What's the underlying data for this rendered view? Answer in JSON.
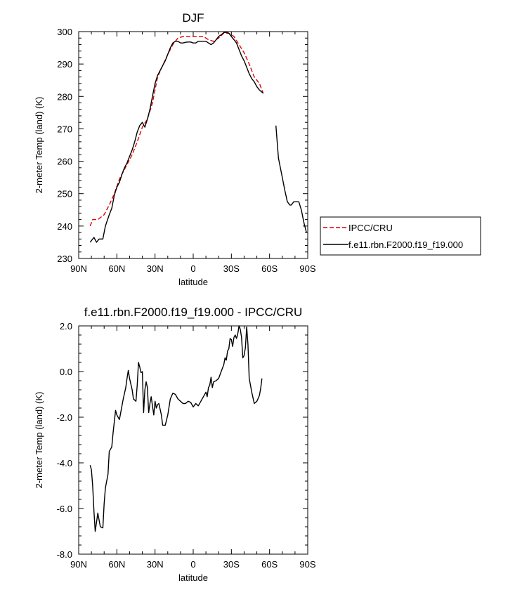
{
  "chart_data": [
    {
      "type": "line",
      "title": "DJF",
      "xlabel": "latitude",
      "ylabel": "2-meter Temp (land) (K)",
      "xlim": [
        90,
        -90
      ],
      "ylim": [
        230,
        300
      ],
      "x_ticks": [
        90,
        60,
        30,
        0,
        -30,
        -60,
        -90
      ],
      "x_tick_labels": [
        "90N",
        "60N",
        "30N",
        "0",
        "30S",
        "60S",
        "90S"
      ],
      "y_ticks": [
        230,
        240,
        250,
        260,
        270,
        280,
        290,
        300
      ],
      "y_tick_labels": [
        "230",
        "240",
        "250",
        "260",
        "270",
        "280",
        "290",
        "300"
      ],
      "legend": {
        "position": "right",
        "entries": [
          {
            "label": "IPCC/CRU",
            "color": "#e00000",
            "dash": "dashed"
          },
          {
            "label": "f.e11.rbn.F2000.f19_f19.000",
            "color": "#000000",
            "dash": "solid"
          }
        ]
      },
      "series": [
        {
          "name": "IPCC/CRU",
          "color": "#e00000",
          "dash": "dashed",
          "segments": [
            [
              [
                81,
                240
              ],
              [
                79,
                242
              ],
              [
                75,
                242
              ],
              [
                70,
                243.5
              ],
              [
                66,
                246.5
              ],
              [
                62,
                250
              ],
              [
                58,
                254.5
              ],
              [
                52,
                259
              ],
              [
                48,
                262
              ],
              [
                44,
                266
              ],
              [
                40,
                270.5
              ],
              [
                36,
                273
              ],
              [
                32,
                278
              ],
              [
                28,
                286
              ],
              [
                24,
                289.5
              ],
              [
                20,
                293
              ],
              [
                16,
                296
              ],
              [
                12,
                298
              ],
              [
                8,
                298.5
              ],
              [
                4,
                298.5
              ],
              [
                0,
                298.5
              ],
              [
                -4,
                298.5
              ],
              [
                -8,
                298.5
              ],
              [
                -12,
                297.5
              ],
              [
                -16,
                297
              ],
              [
                -20,
                298
              ],
              [
                -24,
                299.5
              ],
              [
                -28,
                299.5
              ],
              [
                -32,
                298.5
              ],
              [
                -36,
                296
              ],
              [
                -40,
                293.5
              ],
              [
                -44,
                290
              ],
              [
                -48,
                286
              ],
              [
                -52,
                284
              ],
              [
                -55,
                281
              ]
            ]
          ]
        },
        {
          "name": "f.e11.rbn.F2000.f19_f19.000",
          "color": "#000000",
          "dash": "solid",
          "segments": [
            [
              [
                81,
                235
              ],
              [
                78,
                236.5
              ],
              [
                76,
                235
              ],
              [
                74,
                236
              ],
              [
                71,
                236
              ],
              [
                69,
                240
              ],
              [
                66,
                243.5
              ],
              [
                64,
                245.5
              ],
              [
                62,
                249.5
              ],
              [
                60,
                252
              ],
              [
                58,
                253.5
              ],
              [
                56,
                256
              ],
              [
                54,
                258
              ],
              [
                52,
                259.5
              ],
              [
                50,
                261.5
              ],
              [
                48,
                263.5
              ],
              [
                46,
                266
              ],
              [
                44,
                269
              ],
              [
                42,
                271
              ],
              [
                40,
                272
              ],
              [
                38,
                270.5
              ],
              [
                36,
                273
              ],
              [
                34,
                276
              ],
              [
                32,
                280
              ],
              [
                30,
                284
              ],
              [
                28,
                286.5
              ],
              [
                26,
                288
              ],
              [
                24,
                289.5
              ],
              [
                22,
                291
              ],
              [
                20,
                293
              ],
              [
                18,
                295
              ],
              [
                16,
                296.5
              ],
              [
                14,
                297
              ],
              [
                12,
                297
              ],
              [
                10,
                296.5
              ],
              [
                8,
                296.5
              ],
              [
                6,
                296.7
              ],
              [
                4,
                296.8
              ],
              [
                2,
                296.8
              ],
              [
                0,
                296.5
              ],
              [
                -2,
                296.5
              ],
              [
                -4,
                297
              ],
              [
                -6,
                297
              ],
              [
                -8,
                297
              ],
              [
                -10,
                297
              ],
              [
                -12,
                296.5
              ],
              [
                -14,
                296
              ],
              [
                -16,
                296.5
              ],
              [
                -18,
                297.5
              ],
              [
                -20,
                298.5
              ],
              [
                -22,
                299
              ],
              [
                -24,
                299.7
              ],
              [
                -26,
                299.8
              ],
              [
                -28,
                299.5
              ],
              [
                -30,
                298.5
              ],
              [
                -32,
                297.5
              ],
              [
                -34,
                296.5
              ],
              [
                -36,
                294.5
              ],
              [
                -38,
                292.5
              ],
              [
                -40,
                291
              ],
              [
                -42,
                289
              ],
              [
                -44,
                287
              ],
              [
                -46,
                285.5
              ],
              [
                -48,
                284.5
              ],
              [
                -50,
                283
              ],
              [
                -52,
                282
              ],
              [
                -55,
                281
              ]
            ],
            [
              [
                -65,
                271
              ],
              [
                -67,
                261
              ],
              [
                -70,
                255
              ],
              [
                -72,
                251
              ],
              [
                -74,
                247.5
              ],
              [
                -76,
                246.5
              ],
              [
                -77,
                246.5
              ],
              [
                -79,
                247.5
              ],
              [
                -81,
                247.5
              ],
              [
                -83,
                247.5
              ],
              [
                -85,
                245
              ],
              [
                -87,
                241
              ],
              [
                -89,
                238
              ]
            ]
          ]
        }
      ]
    },
    {
      "type": "line",
      "title": "f.e11.rbn.F2000.f19_f19.000 - IPCC/CRU",
      "xlabel": "latitude",
      "ylabel": "2-meter Temp (land) (K)",
      "xlim": [
        90,
        -90
      ],
      "ylim": [
        -8,
        2
      ],
      "x_ticks": [
        90,
        60,
        30,
        0,
        -30,
        -60,
        -90
      ],
      "x_tick_labels": [
        "90N",
        "60N",
        "30N",
        "0",
        "30S",
        "60S",
        "90S"
      ],
      "y_ticks": [
        -8,
        -6,
        -4,
        -2,
        0,
        2
      ],
      "y_tick_labels": [
        "-8.0",
        "-6.0",
        "-4.0",
        "-2.0",
        "0.0",
        "2.0"
      ],
      "series": [
        {
          "color": "#000000",
          "dash": "solid",
          "segments": [
            [
              [
                81,
                -4.1
              ],
              [
                80,
                -4.3
              ],
              [
                79,
                -5
              ],
              [
                78,
                -6.1
              ],
              [
                77,
                -7
              ],
              [
                76,
                -6.6
              ],
              [
                75,
                -6.2
              ],
              [
                74,
                -6.5
              ],
              [
                73,
                -6.8
              ],
              [
                71,
                -6.85
              ],
              [
                70,
                -5.8
              ],
              [
                69,
                -5.1
              ],
              [
                67,
                -4.5
              ],
              [
                66,
                -3.5
              ],
              [
                64,
                -3.3
              ],
              [
                63,
                -2.7
              ],
              [
                62,
                -2.2
              ],
              [
                61,
                -1.7
              ],
              [
                60,
                -1.9
              ],
              [
                58,
                -2.1
              ],
              [
                57,
                -1.8
              ],
              [
                55,
                -1.2
              ],
              [
                53,
                -0.7
              ],
              [
                52,
                -0.3
              ],
              [
                51,
                0.05
              ],
              [
                50,
                -0.3
              ],
              [
                48,
                -0.8
              ],
              [
                47,
                -1.2
              ],
              [
                45,
                -1.3
              ],
              [
                44,
                -0.6
              ],
              [
                43,
                0.4
              ],
              [
                42,
                0.2
              ],
              [
                41,
                -0.05
              ],
              [
                40,
                0
              ],
              [
                39,
                -1.8
              ],
              [
                38,
                -0.8
              ],
              [
                37,
                -0.45
              ],
              [
                36,
                -0.7
              ],
              [
                35,
                -1.8
              ],
              [
                34,
                -1.4
              ],
              [
                33,
                -1.1
              ],
              [
                32,
                -1.5
              ],
              [
                31,
                -1.9
              ],
              [
                30,
                -1.3
              ],
              [
                29,
                -1.6
              ],
              [
                28,
                -1.45
              ],
              [
                27,
                -1.4
              ],
              [
                25,
                -1.9
              ],
              [
                24,
                -2.35
              ],
              [
                22,
                -2.35
              ],
              [
                20,
                -1.9
              ],
              [
                18,
                -1.2
              ],
              [
                16,
                -0.95
              ],
              [
                14,
                -1
              ],
              [
                12,
                -1.2
              ],
              [
                10,
                -1.3
              ],
              [
                8,
                -1.4
              ],
              [
                6,
                -1.4
              ],
              [
                4,
                -1.3
              ],
              [
                2,
                -1.35
              ],
              [
                0,
                -1.55
              ],
              [
                -2,
                -1.4
              ],
              [
                -4,
                -1.5
              ],
              [
                -6,
                -1.3
              ],
              [
                -8,
                -1.1
              ],
              [
                -10,
                -0.9
              ],
              [
                -11,
                -1.1
              ],
              [
                -12,
                -0.7
              ],
              [
                -13,
                -0.6
              ],
              [
                -14,
                -0.25
              ],
              [
                -15,
                -0.7
              ],
              [
                -16,
                -0.45
              ],
              [
                -18,
                -0.4
              ],
              [
                -20,
                -0.3
              ],
              [
                -22,
                0
              ],
              [
                -24,
                0.3
              ],
              [
                -25,
                0.6
              ],
              [
                -26,
                0.5
              ],
              [
                -27,
                0.9
              ],
              [
                -28,
                1
              ],
              [
                -29,
                1.45
              ],
              [
                -30,
                1.4
              ],
              [
                -31,
                1.1
              ],
              [
                -32,
                1.5
              ],
              [
                -33,
                1.6
              ],
              [
                -34,
                1.45
              ],
              [
                -35,
                1.65
              ],
              [
                -36,
                2
              ],
              [
                -37,
                1.85
              ],
              [
                -38,
                1.5
              ],
              [
                -39,
                0.6
              ],
              [
                -40,
                0.7
              ],
              [
                -41,
                1.05
              ],
              [
                -42,
                1.95
              ],
              [
                -43,
                1.2
              ],
              [
                -44,
                -0.3
              ],
              [
                -46,
                -0.9
              ],
              [
                -48,
                -1.4
              ],
              [
                -50,
                -1.3
              ],
              [
                -52,
                -1.05
              ],
              [
                -53,
                -0.75
              ],
              [
                -54,
                -0.3
              ]
            ]
          ]
        }
      ]
    }
  ]
}
